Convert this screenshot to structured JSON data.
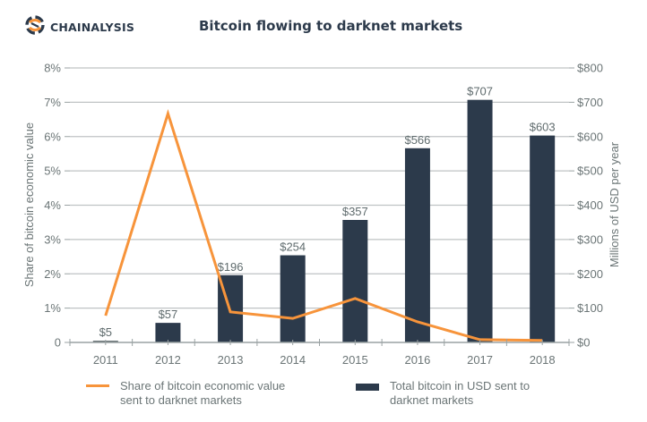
{
  "brand": {
    "name": "CHAINALYSIS",
    "logo_icon": "chainalysis-logo-icon",
    "colors": {
      "navy": "#2c3a4b",
      "orange": "#f7943b"
    }
  },
  "chart_data": {
    "type": "bar",
    "title": "Bitcoin flowing to darknet markets",
    "categories": [
      "2011",
      "2012",
      "2013",
      "2014",
      "2015",
      "2016",
      "2017",
      "2018"
    ],
    "series": [
      {
        "name": "Total bitcoin in USD sent to darknet markets",
        "type": "bar",
        "axis": "right",
        "color": "#2c3a4b",
        "values": [
          5,
          57,
          196,
          254,
          357,
          566,
          707,
          603
        ],
        "labels": [
          "$5",
          "$57",
          "$196",
          "$254",
          "$357",
          "$566",
          "$707",
          "$603"
        ]
      },
      {
        "name": "Share of bitcoin economic value sent to darknet markets",
        "type": "line",
        "axis": "left",
        "color": "#f7943b",
        "values": [
          0.78,
          6.67,
          0.89,
          0.7,
          1.28,
          0.6,
          0.08,
          0.06
        ]
      }
    ],
    "left_axis": {
      "label": "Share of bitcoin economic value",
      "ylim": [
        0,
        8
      ],
      "ticks": [
        0,
        1,
        2,
        3,
        4,
        5,
        6,
        7,
        8
      ],
      "tick_labels": [
        "0",
        "1%",
        "2%",
        "3%",
        "4%",
        "5%",
        "6%",
        "7%",
        "8%"
      ]
    },
    "right_axis": {
      "label": "Millions of USD per year",
      "ylim": [
        0,
        800
      ],
      "ticks": [
        0,
        100,
        200,
        300,
        400,
        500,
        600,
        700,
        800
      ],
      "tick_labels": [
        "$0",
        "$100",
        "$200",
        "$300",
        "$400",
        "$500",
        "$600",
        "$700",
        "$800"
      ]
    },
    "xlabel": "",
    "grid": true,
    "legend_position": "bottom",
    "legend": [
      {
        "label": "Share of bitcoin economic value sent to darknet markets",
        "swatch": "line",
        "color": "#f7943b"
      },
      {
        "label": "Total bitcoin in USD sent to darknet markets",
        "swatch": "bar",
        "color": "#2c3a4b"
      }
    ]
  }
}
